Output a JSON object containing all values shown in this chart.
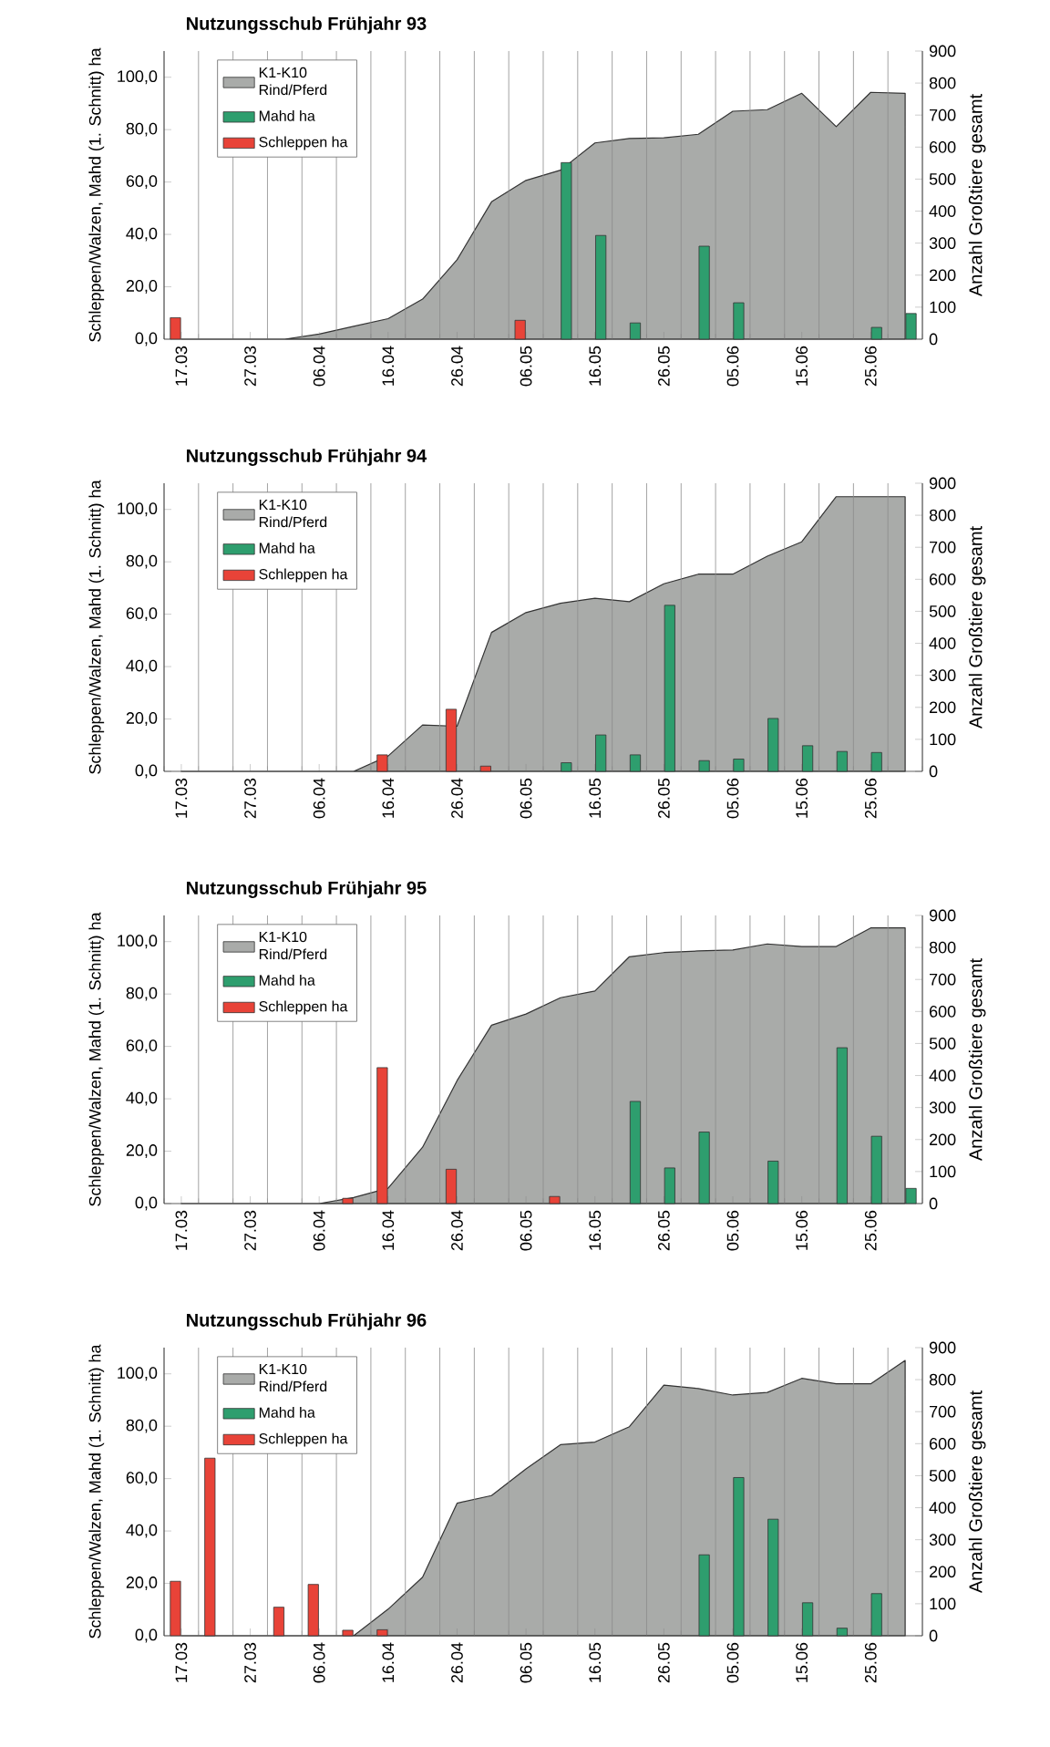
{
  "chart_data": [
    {
      "type": "bar",
      "title": "Nutzungsschub Frühjahr 93",
      "ylabel": "Schleppen/Walzen, Mahd (1. Schnitt) ha",
      "y2label": "Anzahl Großtiere gesamt",
      "categories": [
        "17.03",
        null,
        "27.03",
        null,
        "06.04",
        null,
        "16.04",
        null,
        "26.04",
        null,
        "06.05",
        null,
        "16.05",
        null,
        "26.05",
        null,
        "05.06",
        null,
        "15.06",
        null,
        "25.06",
        null
      ],
      "series": [
        {
          "name": "K1-K10 Rind/Pferd",
          "type": "area",
          "axis": "y2",
          "color": "#a9aba9",
          "values": [
            0,
            0,
            0,
            0,
            16,
            40,
            64,
            125,
            248,
            429,
            496,
            528,
            613,
            627,
            629,
            640,
            712,
            717,
            768,
            664,
            771,
            768
          ]
        },
        {
          "name": "Mahd ha",
          "type": "bar",
          "color": "#2e9e6e",
          "values": [
            null,
            null,
            null,
            null,
            null,
            null,
            null,
            null,
            null,
            null,
            null,
            67.4,
            39.6,
            6.2,
            null,
            35.5,
            13.9,
            null,
            null,
            null,
            4.5,
            9.8
          ]
        },
        {
          "name": "Schleppen ha",
          "type": "bar",
          "color": "#e84338",
          "values": [
            8.2,
            null,
            null,
            null,
            null,
            null,
            null,
            null,
            null,
            null,
            7.2,
            null,
            null,
            null,
            null,
            null,
            null,
            null,
            null,
            null,
            null,
            null
          ]
        }
      ],
      "ylim": [
        0,
        110
      ],
      "yticks": [
        {
          "value": 0,
          "label": "0,0"
        },
        {
          "value": 20,
          "label": "20,0"
        },
        {
          "value": 40,
          "label": "40,0"
        },
        {
          "value": 60,
          "label": "60,0"
        },
        {
          "value": 80,
          "label": "80,0"
        },
        {
          "value": 100,
          "label": "100,0"
        }
      ],
      "y2lim": [
        0,
        900
      ],
      "y2ticks": [
        0,
        100,
        200,
        300,
        400,
        500,
        600,
        700,
        800,
        900
      ],
      "grid": "x",
      "legend": "top left"
    },
    {
      "type": "bar",
      "title": "Nutzungsschub Frühjahr 94",
      "ylabel": "Schleppen/Walzen, Mahd (1. Schnitt) ha",
      "y2label": "Anzahl Großtiere gesamt",
      "categories": [
        "17.03",
        null,
        "27.03",
        null,
        "06.04",
        null,
        "16.04",
        null,
        "26.04",
        null,
        "06.05",
        null,
        "16.05",
        null,
        "26.05",
        null,
        "05.06",
        null,
        "15.06",
        null,
        "25.06",
        null
      ],
      "series": [
        {
          "name": "K1-K10 Rind/Pferd",
          "type": "area",
          "axis": "y2",
          "color": "#a9aba9",
          "values": [
            0,
            0,
            0,
            0,
            0,
            0,
            48,
            145,
            141,
            434,
            496,
            525,
            541,
            530,
            586,
            616,
            616,
            672,
            717,
            858,
            858,
            858
          ]
        },
        {
          "name": "Mahd ha",
          "type": "bar",
          "color": "#2e9e6e",
          "values": [
            null,
            null,
            null,
            null,
            null,
            null,
            null,
            null,
            null,
            null,
            null,
            3.3,
            13.9,
            6.3,
            63.4,
            4.1,
            4.7,
            20.2,
            9.8,
            7.6,
            7.2,
            null
          ]
        },
        {
          "name": "Schleppen ha",
          "type": "bar",
          "color": "#e84338",
          "values": [
            null,
            null,
            null,
            null,
            null,
            null,
            6.3,
            null,
            23.7,
            2,
            null,
            null,
            null,
            null,
            null,
            null,
            null,
            null,
            null,
            null,
            null,
            null
          ]
        }
      ],
      "ylim": [
        0,
        110
      ],
      "yticks": [
        {
          "value": 0,
          "label": "0,0"
        },
        {
          "value": 20,
          "label": "20,0"
        },
        {
          "value": 40,
          "label": "40,0"
        },
        {
          "value": 60,
          "label": "60,0"
        },
        {
          "value": 80,
          "label": "80,0"
        },
        {
          "value": 100,
          "label": "100,0"
        }
      ],
      "y2lim": [
        0,
        900
      ],
      "y2ticks": [
        0,
        100,
        200,
        300,
        400,
        500,
        600,
        700,
        800,
        900
      ],
      "grid": "x",
      "legend": "top left"
    },
    {
      "type": "bar",
      "title": "Nutzungsschub Frühjahr 95",
      "ylabel": "Schleppen/Walzen, Mahd (1. Schnitt) ha",
      "y2label": "Anzahl Großtiere gesamt",
      "categories": [
        "17.03",
        null,
        "27.03",
        null,
        "06.04",
        null,
        "16.04",
        null,
        "26.04",
        null,
        "06.05",
        null,
        "16.05",
        null,
        "26.05",
        null,
        "05.06",
        null,
        "15.06",
        null,
        "25.06",
        null
      ],
      "series": [
        {
          "name": "K1-K10 Rind/Pferd",
          "type": "area",
          "axis": "y2",
          "color": "#a9aba9",
          "values": [
            0,
            0,
            0,
            0,
            0,
            19,
            48,
            176,
            384,
            557,
            592,
            643,
            664,
            771,
            784,
            789,
            792,
            811,
            803,
            803,
            861,
            861
          ]
        },
        {
          "name": "Mahd ha",
          "type": "bar",
          "color": "#2e9e6e",
          "values": [
            null,
            null,
            null,
            null,
            null,
            null,
            null,
            null,
            null,
            null,
            null,
            null,
            null,
            39,
            13.6,
            27.3,
            null,
            16.2,
            null,
            59.5,
            25.7,
            5.8
          ]
        },
        {
          "name": "Schleppen ha",
          "type": "bar",
          "color": "#e84338",
          "values": [
            null,
            null,
            null,
            null,
            null,
            2,
            51.9,
            null,
            13.1,
            null,
            null,
            2.7,
            null,
            null,
            null,
            null,
            null,
            null,
            null,
            null,
            null,
            null
          ]
        }
      ],
      "ylim": [
        0,
        110
      ],
      "yticks": [
        {
          "value": 0,
          "label": "0,0"
        },
        {
          "value": 20,
          "label": "20,0"
        },
        {
          "value": 40,
          "label": "40,0"
        },
        {
          "value": 60,
          "label": "60,0"
        },
        {
          "value": 80,
          "label": "80,0"
        },
        {
          "value": 100,
          "label": "100,0"
        }
      ],
      "y2lim": [
        0,
        900
      ],
      "y2ticks": [
        0,
        100,
        200,
        300,
        400,
        500,
        600,
        700,
        800,
        900
      ],
      "grid": "x",
      "legend": "top left"
    },
    {
      "type": "bar",
      "title": "Nutzungsschub Frühjahr 96",
      "ylabel": "Schleppen/Walzen, Mahd (1. Schnitt) ha",
      "y2label": "Anzahl Großtiere gesamt",
      "categories": [
        "17.03",
        null,
        "27.03",
        null,
        "06.04",
        null,
        "16.04",
        null,
        "26.04",
        null,
        "06.05",
        null,
        "16.05",
        null,
        "26.05",
        null,
        "05.06",
        null,
        "15.06",
        null,
        "25.06",
        null
      ],
      "series": [
        {
          "name": "K1-K10 Rind/Pferd",
          "type": "area",
          "axis": "y2",
          "color": "#a9aba9",
          "values": [
            0,
            0,
            0,
            0,
            0,
            0,
            83,
            183,
            414,
            438,
            521,
            597,
            605,
            653,
            783,
            772,
            752,
            760,
            804,
            787,
            787,
            860
          ]
        },
        {
          "name": "Mahd ha",
          "type": "bar",
          "color": "#2e9e6e",
          "values": [
            null,
            null,
            null,
            null,
            null,
            null,
            null,
            null,
            null,
            null,
            null,
            null,
            null,
            null,
            null,
            30.9,
            60.4,
            44.5,
            12.6,
            2.9,
            16.1,
            null
          ]
        },
        {
          "name": "Schleppen ha",
          "type": "bar",
          "color": "#e84338",
          "values": [
            20.8,
            67.8,
            null,
            10.9,
            19.6,
            2.1,
            2.3,
            null,
            null,
            null,
            null,
            null,
            null,
            null,
            null,
            null,
            null,
            null,
            null,
            null,
            null,
            null
          ]
        }
      ],
      "ylim": [
        0,
        110
      ],
      "yticks": [
        {
          "value": 0,
          "label": "0,0"
        },
        {
          "value": 20,
          "label": "20,0"
        },
        {
          "value": 40,
          "label": "40,0"
        },
        {
          "value": 60,
          "label": "60,0"
        },
        {
          "value": 80,
          "label": "80,0"
        },
        {
          "value": 100,
          "label": "100,0"
        }
      ],
      "y2lim": [
        0,
        900
      ],
      "y2ticks": [
        0,
        100,
        200,
        300,
        400,
        500,
        600,
        700,
        800,
        900
      ],
      "grid": "x",
      "legend": "top left"
    }
  ]
}
